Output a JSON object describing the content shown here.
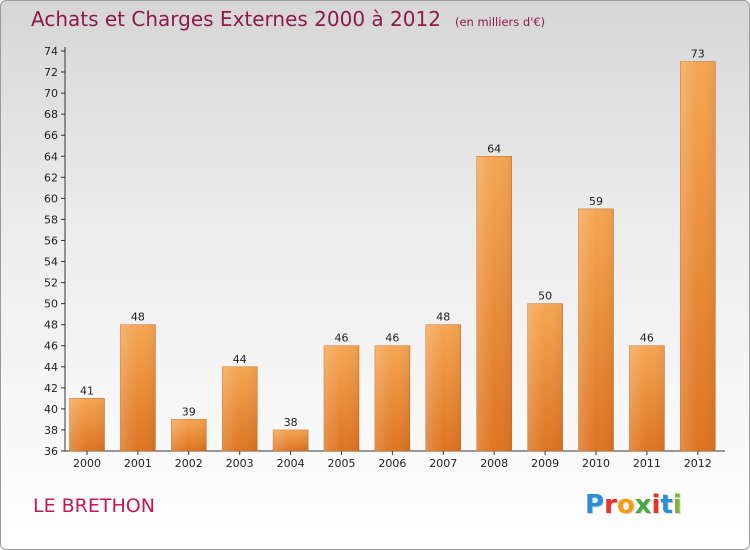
{
  "header": {
    "title": "Achats et Charges Externes 2000 à 2012",
    "unit": "(en milliers d'€)"
  },
  "footer": {
    "location": "LE BRETHON",
    "brand": "Proxiti"
  },
  "colors": {
    "title": "#8e1a4c",
    "bar_light": "#f5a653",
    "bar_dark": "#dd7421",
    "location": "#c2185b"
  },
  "chart_data": {
    "type": "bar",
    "title": "Achats et Charges Externes 2000 à 2012",
    "subtitle": "(en milliers d'€)",
    "categories": [
      "2000",
      "2001",
      "2002",
      "2003",
      "2004",
      "2005",
      "2006",
      "2007",
      "2008",
      "2009",
      "2010",
      "2011",
      "2012"
    ],
    "values": [
      41,
      48,
      39,
      44,
      38,
      46,
      46,
      48,
      64,
      50,
      59,
      46,
      73
    ],
    "ylim": [
      36,
      74
    ],
    "yticks": [
      36,
      38,
      40,
      42,
      44,
      46,
      48,
      50,
      52,
      54,
      56,
      58,
      60,
      62,
      64,
      66,
      68,
      70,
      72,
      74
    ],
    "grid": false,
    "legend": "none"
  }
}
